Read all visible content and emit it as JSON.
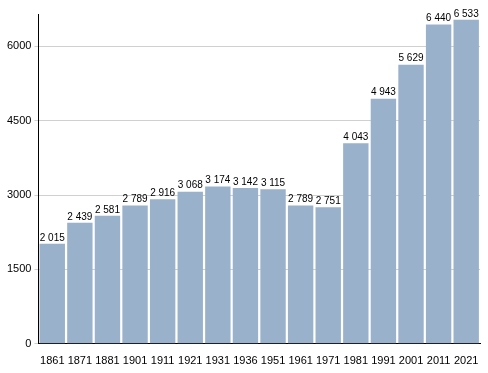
{
  "chart_data": {
    "type": "bar",
    "categories": [
      "1861",
      "1871",
      "1881",
      "1901",
      "1911",
      "1921",
      "1931",
      "1936",
      "1951",
      "1961",
      "1971",
      "1981",
      "1991",
      "2001",
      "2011",
      "2021"
    ],
    "values": [
      2015,
      2439,
      2581,
      2789,
      2916,
      3068,
      3174,
      3142,
      3115,
      2789,
      2751,
      4043,
      4943,
      5629,
      6440,
      6533
    ],
    "value_labels": [
      "2 015",
      "2 439",
      "2 581",
      "2 789",
      "2 916",
      "3 068",
      "3 174",
      "3 142",
      "3 115",
      "2 789",
      "2 751",
      "4 043",
      "4 943",
      "5 629",
      "6 440",
      "6 533"
    ],
    "data_labels": true,
    "color": "#9ab1cc",
    "ylim": [
      0,
      6650
    ],
    "yticks": [
      0,
      1500,
      3000,
      4500,
      6000
    ],
    "grid": true
  }
}
